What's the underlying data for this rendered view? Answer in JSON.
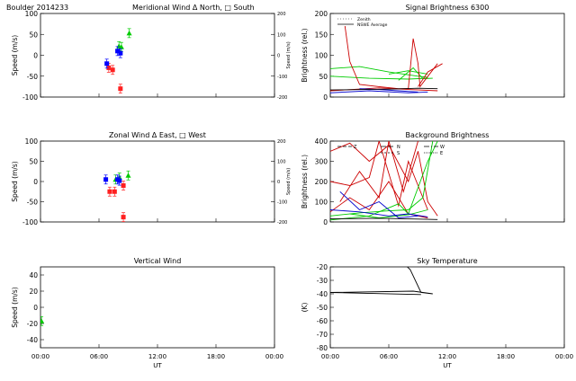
{
  "chart_data": [
    {
      "type": "scatter",
      "title_left": "Boulder   2014233",
      "title": "Meridional Wind   Δ North, □ South",
      "ylabel": "Speed (m/s)",
      "ylabel_right": "Speed (m/s)",
      "ylim": [
        -100,
        100
      ],
      "yticks": [
        "100",
        "50",
        "0",
        "-50",
        "-100"
      ],
      "ylim_right": [
        -200,
        200
      ],
      "yticks_right": [
        "200",
        "100",
        "0",
        "-100",
        "-200"
      ],
      "series": [
        {
          "name": "North",
          "color": "#00cc00",
          "points": [
            [
              8.05,
              22
            ],
            [
              8.3,
              20
            ],
            [
              9.1,
              53
            ]
          ]
        },
        {
          "name": "South",
          "color": "#ff2020",
          "points": [
            [
              7.0,
              -30
            ],
            [
              7.4,
              -35
            ],
            [
              8.2,
              -80
            ]
          ]
        },
        {
          "name": "Zenith",
          "color": "#0000ff",
          "points": [
            [
              6.8,
              -20
            ],
            [
              7.9,
              10
            ],
            [
              8.2,
              5
            ]
          ]
        }
      ]
    },
    {
      "type": "line",
      "title": "Signal Brightness      6300",
      "ylabel": "Brightness (rel.)",
      "ylim": [
        0,
        200
      ],
      "yticks": [
        "200",
        "150",
        "100",
        "50",
        "0"
      ],
      "legend": [
        "Zenith",
        "NSWE Average"
      ],
      "series": [
        {
          "color": "#00cc00",
          "points": [
            [
              0,
              68
            ],
            [
              3,
              73
            ],
            [
              6,
              60
            ],
            [
              9,
              50
            ],
            [
              10,
              47
            ]
          ]
        },
        {
          "color": "#00cc00",
          "points": [
            [
              0,
              50
            ],
            [
              4,
              45
            ],
            [
              8,
              43
            ],
            [
              10,
              45
            ]
          ]
        },
        {
          "color": "#00cc00",
          "points": [
            [
              6,
              55
            ],
            [
              8,
              63
            ],
            [
              10,
              55
            ]
          ]
        },
        {
          "color": "#00cc00",
          "points": [
            [
              7,
              40
            ],
            [
              8.5,
              70
            ],
            [
              9.5,
              44
            ],
            [
              10.5,
              45
            ]
          ]
        },
        {
          "color": "#cc0000",
          "points": [
            [
              1.5,
              170
            ],
            [
              2,
              85
            ],
            [
              3,
              30
            ],
            [
              5,
              25
            ],
            [
              7,
              20
            ],
            [
              8,
              20
            ],
            [
              8.5,
              140
            ],
            [
              9,
              80
            ],
            [
              9.2,
              25
            ],
            [
              10.5,
              65
            ],
            [
              11,
              80
            ]
          ]
        },
        {
          "color": "#cc0000",
          "points": [
            [
              0,
              15
            ],
            [
              5,
              22
            ],
            [
              8,
              18
            ],
            [
              11,
              15
            ]
          ]
        },
        {
          "color": "#cc0000",
          "points": [
            [
              9,
              25
            ],
            [
              10,
              60
            ],
            [
              11.5,
              80
            ]
          ]
        },
        {
          "color": "#0000cc",
          "points": [
            [
              0,
              10
            ],
            [
              4,
              15
            ],
            [
              8,
              10
            ],
            [
              10,
              12
            ]
          ]
        },
        {
          "color": "#0000cc",
          "points": [
            [
              3,
              20
            ],
            [
              5,
              18
            ],
            [
              7,
              15
            ],
            [
              9,
              12
            ]
          ]
        },
        {
          "color": "#000000",
          "points": [
            [
              0,
              17
            ],
            [
              6,
              19
            ],
            [
              9,
              21
            ],
            [
              11,
              20
            ]
          ]
        }
      ]
    },
    {
      "type": "scatter",
      "title": "Zonal Wind      Δ East, □ West",
      "ylabel": "Speed (m/s)",
      "ylabel_right": "Speed (m/s)",
      "ylim": [
        -100,
        100
      ],
      "yticks": [
        "100",
        "50",
        "0",
        "-50",
        "-100"
      ],
      "ylim_right": [
        -200,
        200
      ],
      "yticks_right": [
        "200",
        "100",
        "0",
        "-100",
        "-200"
      ],
      "series": [
        {
          "name": "East",
          "color": "#00cc00",
          "points": [
            [
              7.7,
              5
            ],
            [
              8.1,
              10
            ],
            [
              9.0,
              15
            ]
          ]
        },
        {
          "name": "West",
          "color": "#ff2020",
          "points": [
            [
              7.1,
              -25
            ],
            [
              7.6,
              -25
            ],
            [
              8.5,
              -10
            ],
            [
              8.5,
              -88
            ]
          ]
        },
        {
          "name": "Zenith",
          "color": "#0000ff",
          "points": [
            [
              6.7,
              5
            ],
            [
              7.9,
              5
            ],
            [
              8.1,
              2
            ]
          ]
        }
      ]
    },
    {
      "type": "line",
      "title": "Background Brightness",
      "ylabel": "Brightness (rel.)",
      "ylim": [
        0,
        400
      ],
      "yticks": [
        "400",
        "300",
        "200",
        "100",
        "0"
      ],
      "legend": [
        "Z",
        "N",
        "S",
        "W",
        "E"
      ],
      "series": [
        {
          "color": "#cc0000",
          "points": [
            [
              0,
              350
            ],
            [
              2,
              390
            ],
            [
              4,
              300
            ],
            [
              6,
              380
            ],
            [
              8,
              200
            ],
            [
              9,
              350
            ],
            [
              10,
              100
            ],
            [
              11,
              30
            ]
          ]
        },
        {
          "color": "#cc0000",
          "points": [
            [
              0,
              200
            ],
            [
              2,
              180
            ],
            [
              4,
              220
            ],
            [
              5,
              400
            ],
            [
              7,
              80
            ],
            [
              8,
              300
            ],
            [
              10,
              60
            ]
          ]
        },
        {
          "color": "#cc0000",
          "points": [
            [
              1,
              100
            ],
            [
              3,
              250
            ],
            [
              5,
              120
            ],
            [
              6,
              400
            ],
            [
              7.5,
              150
            ],
            [
              9,
              400
            ]
          ]
        },
        {
          "color": "#cc0000",
          "points": [
            [
              0,
              50
            ],
            [
              2,
              120
            ],
            [
              4,
              60
            ],
            [
              6,
              200
            ],
            [
              8,
              40
            ],
            [
              10,
              20
            ]
          ]
        },
        {
          "color": "#00cc00",
          "points": [
            [
              0,
              30
            ],
            [
              3,
              45
            ],
            [
              6,
              55
            ],
            [
              8,
              60
            ],
            [
              9.5,
              120
            ],
            [
              10.5,
              400
            ]
          ]
        },
        {
          "color": "#00cc00",
          "points": [
            [
              0,
              10
            ],
            [
              4,
              30
            ],
            [
              7,
              90
            ],
            [
              8,
              40
            ],
            [
              10,
              300
            ],
            [
              11,
              400
            ]
          ]
        },
        {
          "color": "#00cc00",
          "points": [
            [
              2,
              40
            ],
            [
              5,
              20
            ],
            [
              8,
              35
            ],
            [
              10,
              60
            ]
          ]
        },
        {
          "color": "#0000cc",
          "points": [
            [
              0,
              60
            ],
            [
              3,
              50
            ],
            [
              6,
              30
            ],
            [
              8,
              40
            ],
            [
              10,
              25
            ]
          ]
        },
        {
          "color": "#0000cc",
          "points": [
            [
              1,
              150
            ],
            [
              3,
              60
            ],
            [
              5,
              100
            ],
            [
              7,
              20
            ],
            [
              9,
              30
            ]
          ]
        },
        {
          "color": "#000000",
          "points": [
            [
              0,
              15
            ],
            [
              5,
              18
            ],
            [
              8,
              15
            ],
            [
              11,
              12
            ]
          ]
        }
      ]
    },
    {
      "type": "scatter",
      "title": "Vertical Wind",
      "xlabel": "UT",
      "ylabel": "Speed (m/s)",
      "ylim": [
        -50,
        50
      ],
      "yticks": [
        "40",
        "20",
        "0",
        "-20",
        "-40"
      ],
      "xticks": [
        "00:00",
        "06:00",
        "12:00",
        "18:00",
        "00:00"
      ],
      "series": [
        {
          "name": "Zenith",
          "color": "#00cc00",
          "points": [
            [
              0.1,
              -17
            ]
          ]
        }
      ]
    },
    {
      "type": "line",
      "title": "Sky Temperature",
      "xlabel": "UT",
      "ylabel": "(K)",
      "ylim": [
        -80,
        -20
      ],
      "yticks": [
        "-20",
        "-30",
        "-40",
        "-50",
        "-60",
        "-70",
        "-80"
      ],
      "xticks": [
        "00:00",
        "06:00",
        "12:00",
        "18:00",
        "00:00"
      ],
      "series": [
        {
          "color": "#000000",
          "points": [
            [
              7.9,
              -20
            ],
            [
              8.2,
              -22
            ],
            [
              9.3,
              -39
            ],
            [
              10.5,
              -40
            ],
            [
              8.5,
              -38
            ],
            [
              0,
              -39
            ],
            [
              9.3,
              -40.5
            ]
          ]
        }
      ]
    }
  ]
}
